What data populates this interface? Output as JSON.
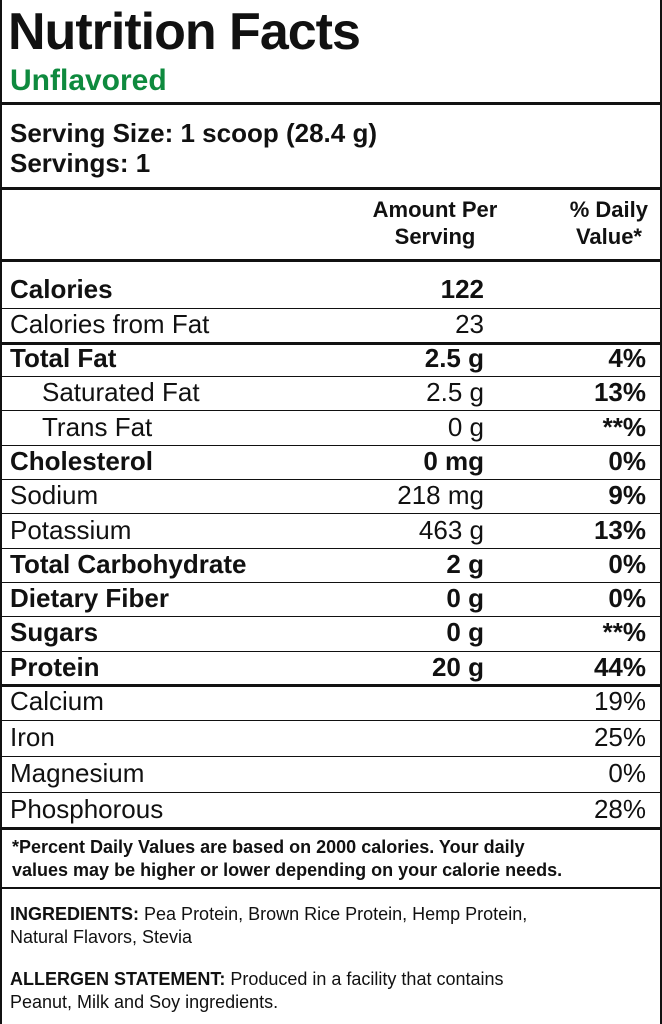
{
  "header": {
    "title": "Nutrition Facts",
    "flavor": "Unflavored"
  },
  "serving": {
    "size": "Serving Size: 1 scoop (28.4 g)",
    "servings": "Servings: 1"
  },
  "columns": {
    "amount": [
      "Amount Per",
      "Serving"
    ],
    "daily_value": [
      "% Daily",
      "Value*"
    ]
  },
  "calorie_rows": [
    {
      "name": "Calories",
      "amount": "122",
      "bold": true
    },
    {
      "name": "Calories from Fat",
      "amount": "23"
    }
  ],
  "nutrient_rows": [
    {
      "name": "Total Fat",
      "amount": "2.5 g",
      "daily_value": "4%",
      "bold": true
    },
    {
      "name": "Saturated Fat",
      "amount": "2.5 g",
      "daily_value": "13%",
      "indent": true
    },
    {
      "name": "Trans Fat",
      "amount": "0 g",
      "daily_value": "**%",
      "indent": true
    },
    {
      "name": "Cholesterol",
      "amount": "0 mg",
      "daily_value": "0%",
      "bold": true
    },
    {
      "name": "Sodium",
      "amount": "218 mg",
      "daily_value": "9%"
    },
    {
      "name": "Potassium",
      "amount": "463 g",
      "daily_value": "13%"
    },
    {
      "name": "Total Carbohydrate",
      "amount": "2 g",
      "daily_value": "0%",
      "bold": true
    },
    {
      "name": "Dietary Fiber",
      "amount": "0 g",
      "daily_value": "0%",
      "bold": true
    },
    {
      "name": "Sugars",
      "amount": "0 g",
      "daily_value": "**%",
      "bold": true
    },
    {
      "name": "Protein",
      "amount": "20 g",
      "daily_value": "44%",
      "bold": true
    }
  ],
  "mineral_rows": [
    {
      "name": "Calcium",
      "daily_value": "19%"
    },
    {
      "name": "Iron",
      "daily_value": "25%"
    },
    {
      "name": "Magnesium",
      "daily_value": "0%"
    },
    {
      "name": "Phosphorous",
      "daily_value": "28%"
    }
  ],
  "footnote": [
    "*Percent Daily Values are based on 2000 calories. Your daily",
    "values may be higher or lower depending on your calorie needs."
  ],
  "ingredients": {
    "label": "INGREDIENTS:",
    "lines": [
      "Pea Protein, Brown Rice Protein, Hemp Protein,",
      "Natural Flavors, Stevia"
    ]
  },
  "allergen": {
    "label": "ALLERGEN STATEMENT:",
    "lines": [
      "Produced in a facility that contains",
      "Peanut, Milk and Soy ingredients."
    ]
  }
}
